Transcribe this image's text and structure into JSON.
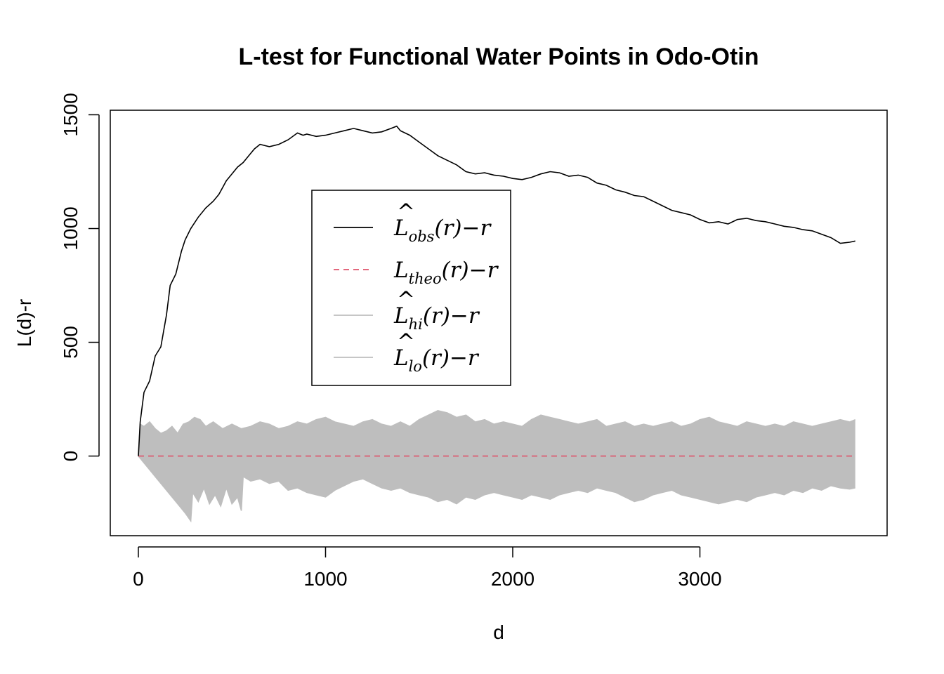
{
  "chart_data": {
    "type": "line",
    "title": "L-test for Functional Water Points in Odo-Otin",
    "xlabel": "d",
    "ylabel": "L(d)-r",
    "xlim": [
      -150,
      4000
    ],
    "ylim": [
      -350,
      1520
    ],
    "x_ticks": [
      0,
      1000,
      2000,
      3000
    ],
    "y_ticks": [
      0,
      500,
      1000,
      1500
    ],
    "grid": false,
    "legend_position": "center",
    "legend": [
      {
        "id": "obs",
        "main": "L",
        "hat": true,
        "sub": "obs",
        "tail": "(r)−r",
        "color": "#000000",
        "dash": "none"
      },
      {
        "id": "theo",
        "main": "L",
        "hat": false,
        "sub": "theo",
        "tail": "(r)−r",
        "color": "#DF536B",
        "dash": "dashed"
      },
      {
        "id": "hi",
        "main": "L",
        "hat": true,
        "sub": "hi",
        "tail": "(r)−r",
        "color": "#BEBEBE",
        "dash": "none"
      },
      {
        "id": "lo",
        "main": "L",
        "hat": true,
        "sub": "lo",
        "tail": "(r)−r",
        "color": "#BEBEBE",
        "dash": "none"
      }
    ],
    "series": [
      {
        "name": "obs",
        "color": "#000000",
        "x": [
          0,
          10,
          30,
          60,
          90,
          120,
          150,
          170,
          200,
          230,
          250,
          280,
          320,
          360,
          400,
          430,
          450,
          470,
          500,
          530,
          560,
          590,
          620,
          650,
          700,
          750,
          800,
          850,
          880,
          900,
          950,
          1000,
          1050,
          1100,
          1150,
          1200,
          1250,
          1300,
          1350,
          1380,
          1400,
          1450,
          1500,
          1550,
          1600,
          1650,
          1700,
          1750,
          1800,
          1850,
          1900,
          1950,
          2000,
          2050,
          2100,
          2150,
          2200,
          2250,
          2300,
          2350,
          2400,
          2450,
          2500,
          2550,
          2600,
          2650,
          2700,
          2750,
          2800,
          2850,
          2900,
          2950,
          3000,
          3050,
          3100,
          3150,
          3200,
          3250,
          3300,
          3350,
          3400,
          3450,
          3500,
          3550,
          3600,
          3650,
          3700,
          3750,
          3800,
          3830
        ],
        "values": [
          0,
          150,
          280,
          330,
          440,
          480,
          620,
          750,
          800,
          900,
          950,
          1000,
          1050,
          1090,
          1120,
          1150,
          1180,
          1210,
          1240,
          1270,
          1290,
          1320,
          1350,
          1370,
          1360,
          1370,
          1390,
          1420,
          1410,
          1415,
          1405,
          1410,
          1420,
          1430,
          1440,
          1430,
          1420,
          1425,
          1440,
          1450,
          1430,
          1410,
          1380,
          1350,
          1320,
          1300,
          1280,
          1250,
          1240,
          1245,
          1235,
          1230,
          1220,
          1215,
          1225,
          1240,
          1250,
          1245,
          1230,
          1235,
          1225,
          1200,
          1190,
          1170,
          1160,
          1145,
          1140,
          1120,
          1100,
          1080,
          1070,
          1060,
          1040,
          1025,
          1030,
          1020,
          1040,
          1045,
          1035,
          1030,
          1020,
          1010,
          1005,
          995,
          990,
          975,
          960,
          935,
          940,
          945
        ]
      },
      {
        "name": "theo",
        "color": "#DF536B",
        "x": [
          0,
          3830
        ],
        "values": [
          0,
          0
        ]
      },
      {
        "name": "hi",
        "color": "#BEBEBE",
        "x": [
          0,
          10,
          30,
          60,
          90,
          120,
          150,
          180,
          210,
          240,
          270,
          300,
          330,
          360,
          400,
          450,
          500,
          550,
          600,
          650,
          700,
          750,
          800,
          850,
          900,
          950,
          1000,
          1050,
          1100,
          1150,
          1200,
          1250,
          1300,
          1350,
          1400,
          1450,
          1500,
          1550,
          1600,
          1650,
          1700,
          1750,
          1800,
          1850,
          1900,
          1950,
          2000,
          2050,
          2100,
          2150,
          2200,
          2250,
          2300,
          2350,
          2400,
          2450,
          2500,
          2550,
          2600,
          2650,
          2700,
          2750,
          2800,
          2850,
          2900,
          2950,
          3000,
          3050,
          3100,
          3150,
          3200,
          3250,
          3300,
          3350,
          3400,
          3450,
          3500,
          3550,
          3600,
          3650,
          3700,
          3750,
          3800,
          3830
        ],
        "values": [
          0,
          140,
          130,
          150,
          120,
          100,
          110,
          130,
          100,
          140,
          150,
          170,
          160,
          130,
          150,
          120,
          140,
          120,
          130,
          150,
          140,
          120,
          130,
          150,
          140,
          160,
          170,
          150,
          140,
          130,
          150,
          160,
          140,
          130,
          150,
          130,
          160,
          180,
          200,
          190,
          170,
          180,
          150,
          160,
          140,
          150,
          140,
          130,
          160,
          180,
          170,
          160,
          150,
          140,
          150,
          160,
          130,
          140,
          150,
          130,
          140,
          130,
          140,
          150,
          130,
          140,
          160,
          170,
          150,
          140,
          130,
          150,
          140,
          130,
          140,
          130,
          150,
          140,
          130,
          140,
          150,
          160,
          150,
          160
        ]
      },
      {
        "name": "lo",
        "color": "#BEBEBE",
        "x": [
          0,
          50,
          100,
          150,
          200,
          250,
          280,
          290,
          320,
          350,
          380,
          410,
          440,
          470,
          500,
          530,
          550,
          560,
          600,
          650,
          700,
          750,
          800,
          850,
          900,
          950,
          1000,
          1050,
          1100,
          1150,
          1200,
          1250,
          1300,
          1350,
          1400,
          1450,
          1500,
          1550,
          1600,
          1650,
          1700,
          1750,
          1800,
          1850,
          1900,
          1950,
          2000,
          2050,
          2100,
          2150,
          2200,
          2250,
          2300,
          2350,
          2400,
          2450,
          2500,
          2550,
          2600,
          2650,
          2700,
          2750,
          2800,
          2850,
          2900,
          2950,
          3000,
          3050,
          3100,
          3150,
          3200,
          3250,
          3300,
          3350,
          3400,
          3450,
          3500,
          3550,
          3600,
          3650,
          3700,
          3750,
          3800,
          3830
        ],
        "values": [
          0,
          -50,
          -100,
          -150,
          -200,
          -250,
          -285,
          -160,
          -200,
          -140,
          -210,
          -170,
          -220,
          -140,
          -210,
          -180,
          -240,
          -90,
          -110,
          -100,
          -120,
          -110,
          -150,
          -140,
          -160,
          -170,
          -180,
          -150,
          -130,
          -110,
          -100,
          -120,
          -140,
          -150,
          -140,
          -160,
          -170,
          -180,
          -200,
          -190,
          -210,
          -180,
          -190,
          -170,
          -160,
          -170,
          -180,
          -190,
          -170,
          -180,
          -190,
          -170,
          -160,
          -150,
          -160,
          -140,
          -150,
          -160,
          -180,
          -200,
          -190,
          -170,
          -160,
          -150,
          -170,
          -180,
          -190,
          -200,
          -210,
          -200,
          -190,
          -200,
          -180,
          -170,
          -160,
          -170,
          -150,
          -160,
          -140,
          -150,
          -130,
          -140,
          -145,
          -140
        ]
      }
    ]
  }
}
